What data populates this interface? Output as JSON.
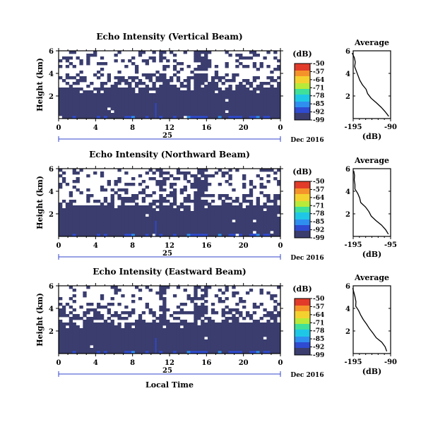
{
  "colors": {
    "colormap": [
      "#3a3d6e",
      "#2f4bd1",
      "#2f8ff0",
      "#1fc7e6",
      "#3fe09a",
      "#b8ea3a",
      "#f5d12f",
      "#f5932a",
      "#e23b2a"
    ],
    "background_level": "#3a3d6e",
    "axis": "#000000",
    "date_axis": "#3344cc"
  },
  "chart_data": [
    {
      "type": "heatmap",
      "title": "Echo Intensity (Vertical Beam)",
      "ylabel": "Height (km)",
      "x_ticks": [
        "0",
        "4",
        "8",
        "12",
        "16",
        "20",
        "0"
      ],
      "x_range": [
        0,
        24
      ],
      "y_ticks": [
        "6",
        "4",
        "2"
      ],
      "y_range": [
        0,
        6
      ],
      "date_tick": "25",
      "date_label": "Dec 2016",
      "colorbar": {
        "unit": "(dB)",
        "ticks": [
          "-50",
          "-57",
          "-64",
          "-71",
          "-78",
          "-85",
          "-92",
          "-99"
        ],
        "range": [
          -99,
          -50
        ]
      },
      "profile": {
        "title": "Average",
        "xlabel": "(dB)",
        "x_ticks": [
          "-195",
          "-90"
        ],
        "x_range": [
          -195,
          -90
        ],
        "y_ticks": [
          "6",
          "4",
          "2"
        ],
        "heights_km": [
          0.2,
          0.6,
          1.0,
          1.4,
          1.8,
          2.2,
          2.6,
          3.0,
          3.4,
          3.8,
          4.2,
          4.6,
          5.0,
          5.4,
          5.8
        ],
        "values_db": [
          -96,
          -104,
          -118,
          -130,
          -142,
          -152,
          -160,
          -168,
          -176,
          -182,
          -186,
          -190,
          -192,
          -194,
          -195
        ]
      }
    },
    {
      "type": "heatmap",
      "title": "Echo Intensity (Northward Beam)",
      "ylabel": "Height (km)",
      "x_ticks": [
        "0",
        "4",
        "8",
        "12",
        "16",
        "20",
        "0"
      ],
      "x_range": [
        0,
        24
      ],
      "y_ticks": [
        "6",
        "4",
        "2"
      ],
      "y_range": [
        0,
        6
      ],
      "date_tick": "25",
      "date_label": "Dec 2016",
      "colorbar": {
        "unit": "(dB)",
        "ticks": [
          "-50",
          "-57",
          "-64",
          "-71",
          "-78",
          "-85",
          "-92",
          "-99"
        ],
        "range": [
          -99,
          -50
        ]
      },
      "profile": {
        "title": "Average",
        "xlabel": "(dB)",
        "x_ticks": [
          "-195",
          "-95"
        ],
        "x_range": [
          -195,
          -95
        ],
        "y_ticks": [
          "6",
          "4",
          "2"
        ],
        "heights_km": [
          0.2,
          0.6,
          1.0,
          1.4,
          1.8,
          2.2,
          2.6,
          3.0,
          3.4,
          3.8,
          4.2,
          4.6,
          5.0,
          5.4,
          5.8
        ],
        "values_db": [
          -100,
          -108,
          -120,
          -134,
          -146,
          -156,
          -164,
          -172,
          -178,
          -184,
          -188,
          -191,
          -193,
          -194,
          -195
        ]
      }
    },
    {
      "type": "heatmap",
      "title": "Echo Intensity (Eastward Beam)",
      "ylabel": "Height (km)",
      "xlabel": "Local Time",
      "x_ticks": [
        "0",
        "4",
        "8",
        "12",
        "16",
        "20",
        "0"
      ],
      "x_range": [
        0,
        24
      ],
      "y_ticks": [
        "6",
        "4",
        "2"
      ],
      "y_range": [
        0,
        6
      ],
      "date_tick": "25",
      "date_label": "Dec 2016",
      "colorbar": {
        "unit": "(dB)",
        "ticks": [
          "-50",
          "-57",
          "-64",
          "-71",
          "-78",
          "-85",
          "-92",
          "-99"
        ],
        "range": [
          -99,
          -50
        ]
      },
      "profile": {
        "title": "Average",
        "xlabel": "(dB)",
        "x_ticks": [
          "-195",
          "-90"
        ],
        "x_range": [
          -195,
          -90
        ],
        "y_ticks": [
          "6",
          "4",
          "2"
        ],
        "heights_km": [
          0.2,
          0.6,
          1.0,
          1.4,
          1.8,
          2.2,
          2.6,
          3.0,
          3.4,
          3.8,
          4.2,
          4.6,
          5.0,
          5.4,
          5.8
        ],
        "values_db": [
          -98,
          -106,
          -116,
          -128,
          -140,
          -150,
          -160,
          -168,
          -176,
          -182,
          -187,
          -190,
          -192,
          -194,
          -195
        ]
      }
    }
  ]
}
